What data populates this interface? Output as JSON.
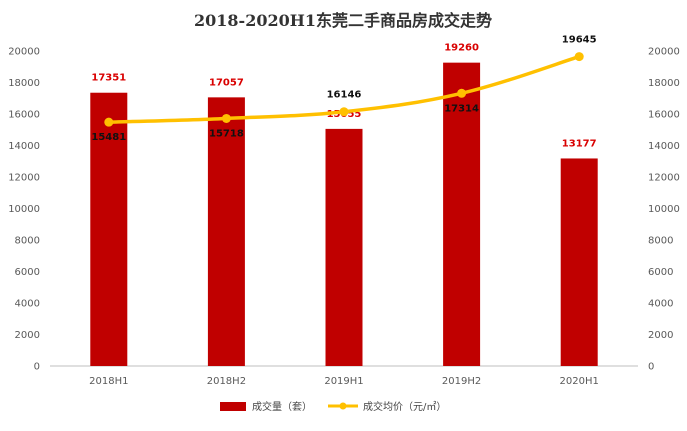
{
  "chart_data": {
    "type": "bar+line",
    "title": "2018-2020H1东莞二手商品房成交走势",
    "categories": [
      "2018H1",
      "2018H2",
      "2019H1",
      "2019H2",
      "2020H1"
    ],
    "series": [
      {
        "name": "成交量（套）",
        "type": "bar",
        "axis": "left",
        "color": "#c00000",
        "values": [
          17351,
          17057,
          15055,
          19260,
          13177
        ]
      },
      {
        "name": "成交均价（元/㎡）",
        "type": "line",
        "axis": "right",
        "color": "#ffc000",
        "values": [
          15481,
          15718,
          16146,
          17314,
          19645
        ]
      }
    ],
    "y_left": {
      "min": 0,
      "max": 20000,
      "step": 2000
    },
    "y_right": {
      "min": 0,
      "max": 20000,
      "step": 2000
    },
    "legend_position": "bottom",
    "grid": false
  }
}
